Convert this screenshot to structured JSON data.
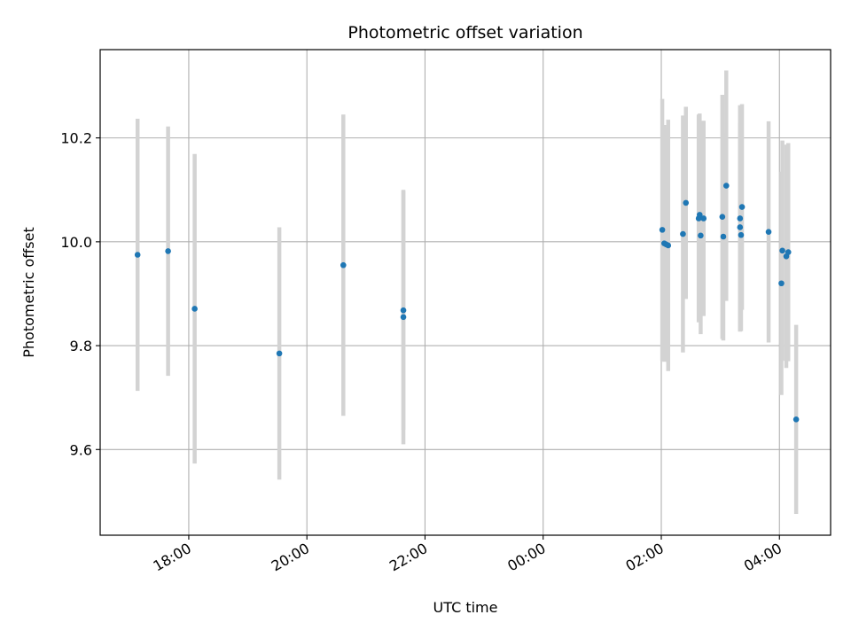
{
  "chart_data": {
    "type": "scatter",
    "title": "Photometric offset variation",
    "xlabel": "UTC time",
    "ylabel": "Photometric offset",
    "x_axis": {
      "kind": "time",
      "range": [
        "16:30",
        "04:52"
      ],
      "ticks": [
        "18:00",
        "20:00",
        "22:00",
        "00:00",
        "02:00",
        "04:00"
      ]
    },
    "y_axis": {
      "range": [
        9.435,
        10.37
      ],
      "ticks": [
        "9.6",
        "9.8",
        "10.0",
        "10.2"
      ]
    },
    "grid": true,
    "colors": {
      "point": "#1f77b4",
      "errorbar": "#d3d3d3",
      "grid": "#b0b0b0"
    },
    "points": [
      {
        "x": "17:08",
        "y": 9.975,
        "yerr": 0.262
      },
      {
        "x": "17:39",
        "y": 9.982,
        "yerr": 0.24
      },
      {
        "x": "18:06",
        "y": 9.871,
        "yerr": 0.298
      },
      {
        "x": "19:32",
        "y": 9.785,
        "yerr": 0.243
      },
      {
        "x": "20:37",
        "y": 9.955,
        "yerr": 0.29
      },
      {
        "x": "21:38",
        "y": 9.868,
        "yerr": 0.23
      },
      {
        "x": "21:38",
        "y": 9.855,
        "yerr": 0.245
      },
      {
        "x": "02:01",
        "y": 10.023,
        "yerr": 0.252
      },
      {
        "x": "02:03",
        "y": 9.997,
        "yerr": 0.228
      },
      {
        "x": "02:05",
        "y": 9.995,
        "yerr": 0.225
      },
      {
        "x": "02:07",
        "y": 9.993,
        "yerr": 0.242
      },
      {
        "x": "02:22",
        "y": 10.015,
        "yerr": 0.228
      },
      {
        "x": "02:25",
        "y": 10.075,
        "yerr": 0.185
      },
      {
        "x": "02:38",
        "y": 10.045,
        "yerr": 0.2
      },
      {
        "x": "02:39",
        "y": 10.052,
        "yerr": 0.195
      },
      {
        "x": "02:40",
        "y": 10.012,
        "yerr": 0.19
      },
      {
        "x": "02:43",
        "y": 10.045,
        "yerr": 0.188
      },
      {
        "x": "03:02",
        "y": 10.048,
        "yerr": 0.235
      },
      {
        "x": "03:03",
        "y": 10.01,
        "yerr": 0.2
      },
      {
        "x": "03:06",
        "y": 10.108,
        "yerr": 0.222
      },
      {
        "x": "03:20",
        "y": 10.045,
        "yerr": 0.218
      },
      {
        "x": "03:20",
        "y": 10.028,
        "yerr": 0.2
      },
      {
        "x": "03:21",
        "y": 10.013,
        "yerr": 0.185
      },
      {
        "x": "03:22",
        "y": 10.067,
        "yerr": 0.198
      },
      {
        "x": "03:49",
        "y": 10.019,
        "yerr": 0.213
      },
      {
        "x": "04:02",
        "y": 9.92,
        "yerr": 0.215
      },
      {
        "x": "04:03",
        "y": 9.983,
        "yerr": 0.212
      },
      {
        "x": "04:07",
        "y": 9.972,
        "yerr": 0.215
      },
      {
        "x": "04:09",
        "y": 9.98,
        "yerr": 0.21
      },
      {
        "x": "04:17",
        "y": 9.658,
        "yerr": 0.182
      }
    ]
  }
}
